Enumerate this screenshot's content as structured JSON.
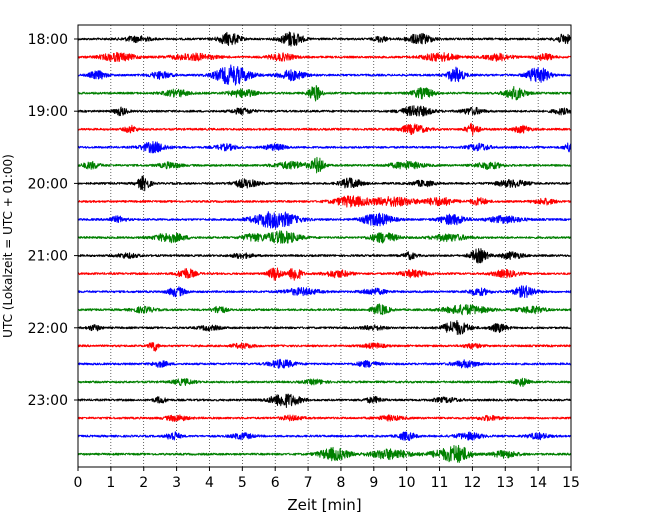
{
  "chart_data": {
    "type": "line",
    "title": "",
    "xlabel": "Zeit  [min]",
    "ylabel": "UTC (Lokalzeit = UTC + 01:00)",
    "xlim": [
      0,
      15
    ],
    "x_ticks": [
      0,
      1,
      2,
      3,
      4,
      5,
      6,
      7,
      8,
      9,
      10,
      11,
      12,
      13,
      14,
      15
    ],
    "x_tick_labels": [
      "0",
      "1",
      "2",
      "3",
      "4",
      "5",
      "6",
      "7",
      "8",
      "9",
      "10",
      "11",
      "12",
      "13",
      "14",
      "15"
    ],
    "y_tick_labels": [
      "18:00",
      "19:00",
      "20:00",
      "21:00",
      "22:00",
      "23:00"
    ],
    "grid": "vertical dotted lines at each minute",
    "trace_colors": [
      "#000000",
      "#ff0000",
      "#0000ff",
      "#008000"
    ],
    "trace_minutes_offset": 15,
    "start_time": "18:00",
    "trace_count": 24,
    "traces": [
      {
        "start": "18:00",
        "color": "#000000",
        "events": [
          [
            4.6,
            0.55,
            0.5
          ],
          [
            6.5,
            0.65,
            0.5
          ],
          [
            10.4,
            0.45,
            0.6
          ],
          [
            14.8,
            0.4,
            0.4
          ],
          [
            1.8,
            0.25,
            0.6
          ],
          [
            9.2,
            0.25,
            0.3
          ]
        ]
      },
      {
        "start": "18:15",
        "color": "#ff0000",
        "events": [
          [
            1.2,
            0.35,
            0.8
          ],
          [
            3.5,
            0.3,
            1.0
          ],
          [
            6.2,
            0.3,
            0.6
          ],
          [
            11.0,
            0.35,
            0.8
          ],
          [
            12.8,
            0.3,
            0.6
          ],
          [
            14.2,
            0.3,
            0.4
          ]
        ]
      },
      {
        "start": "18:30",
        "color": "#0000ff",
        "events": [
          [
            0.6,
            0.35,
            0.4
          ],
          [
            2.5,
            0.3,
            0.5
          ],
          [
            4.7,
            0.85,
            0.8
          ],
          [
            6.5,
            0.45,
            0.6
          ],
          [
            11.5,
            0.65,
            0.4
          ],
          [
            14.0,
            0.75,
            0.5
          ]
        ]
      },
      {
        "start": "18:45",
        "color": "#008000",
        "events": [
          [
            3.0,
            0.3,
            0.6
          ],
          [
            5.0,
            0.35,
            0.6
          ],
          [
            7.2,
            0.7,
            0.3
          ],
          [
            10.5,
            0.45,
            0.5
          ],
          [
            13.3,
            0.55,
            0.5
          ]
        ]
      },
      {
        "start": "19:00",
        "color": "#000000",
        "events": [
          [
            1.3,
            0.35,
            0.3
          ],
          [
            5.0,
            0.25,
            0.5
          ],
          [
            10.3,
            0.45,
            0.7
          ],
          [
            12.0,
            0.3,
            0.5
          ],
          [
            14.7,
            0.25,
            0.4
          ]
        ]
      },
      {
        "start": "19:15",
        "color": "#ff0000",
        "events": [
          [
            1.6,
            0.3,
            0.3
          ],
          [
            10.2,
            0.4,
            0.6
          ],
          [
            12.0,
            0.5,
            0.3
          ],
          [
            13.5,
            0.3,
            0.4
          ]
        ]
      },
      {
        "start": "19:30",
        "color": "#0000ff",
        "events": [
          [
            2.3,
            0.45,
            0.6
          ],
          [
            4.5,
            0.25,
            0.5
          ],
          [
            6.0,
            0.25,
            0.5
          ],
          [
            12.2,
            0.3,
            0.5
          ],
          [
            15.0,
            0.45,
            0.3
          ]
        ]
      },
      {
        "start": "19:45",
        "color": "#008000",
        "events": [
          [
            0.4,
            0.3,
            0.4
          ],
          [
            2.8,
            0.25,
            0.5
          ],
          [
            6.5,
            0.3,
            0.8
          ],
          [
            7.3,
            0.65,
            0.3
          ],
          [
            10.0,
            0.3,
            0.8
          ],
          [
            12.5,
            0.3,
            0.6
          ]
        ]
      },
      {
        "start": "20:00",
        "color": "#000000",
        "events": [
          [
            2.0,
            0.6,
            0.3
          ],
          [
            5.1,
            0.35,
            0.6
          ],
          [
            8.3,
            0.45,
            0.5
          ],
          [
            10.5,
            0.25,
            0.5
          ],
          [
            13.2,
            0.3,
            0.7
          ]
        ]
      },
      {
        "start": "20:15",
        "color": "#ff0000",
        "events": [
          [
            8.3,
            0.45,
            0.8
          ],
          [
            9.6,
            0.4,
            1.0
          ],
          [
            11.0,
            0.35,
            0.7
          ],
          [
            12.2,
            0.3,
            0.4
          ],
          [
            14.2,
            0.25,
            0.5
          ]
        ]
      },
      {
        "start": "20:30",
        "color": "#0000ff",
        "events": [
          [
            6.0,
            0.75,
            1.0
          ],
          [
            9.1,
            0.55,
            0.7
          ],
          [
            11.4,
            0.45,
            0.6
          ],
          [
            13.0,
            0.3,
            0.8
          ],
          [
            1.2,
            0.25,
            0.4
          ]
        ]
      },
      {
        "start": "20:45",
        "color": "#008000",
        "events": [
          [
            2.8,
            0.4,
            0.7
          ],
          [
            5.3,
            0.3,
            0.5
          ],
          [
            6.2,
            0.55,
            0.8
          ],
          [
            9.3,
            0.45,
            0.6
          ],
          [
            11.3,
            0.3,
            0.8
          ]
        ]
      },
      {
        "start": "21:00",
        "color": "#000000",
        "events": [
          [
            10.1,
            0.3,
            0.3
          ],
          [
            12.2,
            0.6,
            0.4
          ],
          [
            13.2,
            0.3,
            0.5
          ],
          [
            1.5,
            0.2,
            0.5
          ],
          [
            5.0,
            0.2,
            0.5
          ]
        ]
      },
      {
        "start": "21:15",
        "color": "#ff0000",
        "events": [
          [
            3.3,
            0.45,
            0.4
          ],
          [
            6.0,
            0.6,
            0.3
          ],
          [
            6.6,
            0.65,
            0.3
          ],
          [
            7.9,
            0.3,
            0.6
          ],
          [
            10.2,
            0.3,
            0.6
          ],
          [
            13.0,
            0.3,
            0.6
          ]
        ]
      },
      {
        "start": "21:30",
        "color": "#0000ff",
        "events": [
          [
            3.0,
            0.4,
            0.4
          ],
          [
            6.8,
            0.3,
            0.8
          ],
          [
            9.0,
            0.25,
            0.6
          ],
          [
            12.2,
            0.3,
            0.5
          ],
          [
            13.6,
            0.5,
            0.5
          ]
        ]
      },
      {
        "start": "21:45",
        "color": "#008000",
        "events": [
          [
            2.0,
            0.25,
            0.5
          ],
          [
            4.3,
            0.35,
            0.3
          ],
          [
            9.2,
            0.45,
            0.4
          ],
          [
            11.8,
            0.4,
            1.0
          ],
          [
            13.8,
            0.3,
            0.6
          ]
        ]
      },
      {
        "start": "22:00",
        "color": "#000000",
        "events": [
          [
            0.5,
            0.25,
            0.3
          ],
          [
            4.0,
            0.2,
            0.5
          ],
          [
            11.5,
            0.6,
            0.6
          ],
          [
            12.8,
            0.35,
            0.4
          ],
          [
            9.0,
            0.2,
            0.5
          ]
        ]
      },
      {
        "start": "22:15",
        "color": "#ff0000",
        "events": [
          [
            2.3,
            0.5,
            0.2
          ],
          [
            5.0,
            0.2,
            0.5
          ],
          [
            9.0,
            0.2,
            0.5
          ],
          [
            12.0,
            0.2,
            0.4
          ]
        ]
      },
      {
        "start": "22:30",
        "color": "#0000ff",
        "events": [
          [
            2.5,
            0.25,
            0.4
          ],
          [
            6.2,
            0.35,
            0.6
          ],
          [
            8.8,
            0.25,
            0.5
          ],
          [
            11.8,
            0.3,
            0.6
          ]
        ]
      },
      {
        "start": "22:45",
        "color": "#008000",
        "events": [
          [
            3.2,
            0.25,
            0.5
          ],
          [
            7.2,
            0.2,
            0.5
          ],
          [
            13.5,
            0.35,
            0.3
          ]
        ]
      },
      {
        "start": "23:00",
        "color": "#000000",
        "events": [
          [
            2.5,
            0.25,
            0.3
          ],
          [
            6.3,
            0.6,
            0.7
          ],
          [
            9.0,
            0.25,
            0.4
          ],
          [
            11.2,
            0.2,
            0.6
          ]
        ]
      },
      {
        "start": "23:15",
        "color": "#ff0000",
        "events": [
          [
            3.0,
            0.25,
            0.5
          ],
          [
            6.5,
            0.2,
            0.5
          ],
          [
            9.5,
            0.2,
            0.6
          ],
          [
            12.5,
            0.2,
            0.5
          ]
        ]
      },
      {
        "start": "23:30",
        "color": "#0000ff",
        "events": [
          [
            2.9,
            0.4,
            0.3
          ],
          [
            5.0,
            0.25,
            0.5
          ],
          [
            10.0,
            0.35,
            0.4
          ],
          [
            11.9,
            0.3,
            0.6
          ],
          [
            14.0,
            0.25,
            0.5
          ]
        ]
      },
      {
        "start": "23:45",
        "color": "#008000",
        "events": [
          [
            7.8,
            0.55,
            0.7
          ],
          [
            9.5,
            0.45,
            0.9
          ],
          [
            11.2,
            0.4,
            0.8
          ],
          [
            11.6,
            0.55,
            0.5
          ],
          [
            13.0,
            0.3,
            0.6
          ]
        ]
      }
    ]
  }
}
